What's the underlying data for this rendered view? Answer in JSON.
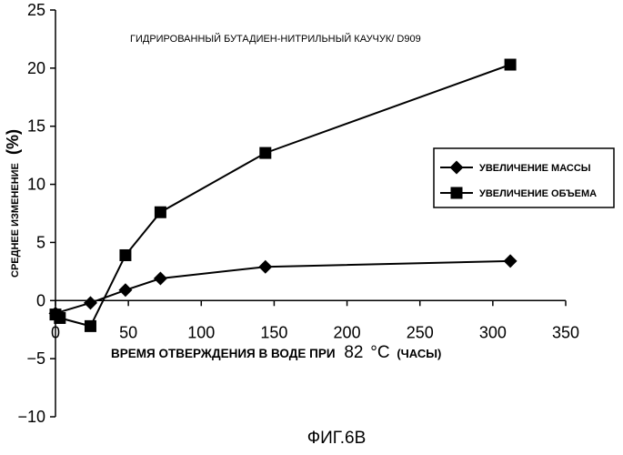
{
  "figure_caption": "ФИГ.6В",
  "chart_data": {
    "type": "line",
    "title": "ГИДРИРОВАННЫЙ БУТАДИЕН-НИТРИЛЬНЫЙ КАУЧУК/ D909",
    "xlabel_prefix": "ВРЕМЯ ОТВЕРЖДЕНИЯ В ВОДЕ ПРИ",
    "xlabel_temp": "82",
    "xlabel_unit": "°C",
    "xlabel_suffix": "(ЧАСЫ)",
    "ylabel_text": "СРЕДНЕЕ  ИЗМЕНЕНИЕ",
    "ylabel_unit": "(%)",
    "xlim": [
      0,
      350
    ],
    "ylim": [
      -10,
      25
    ],
    "x_ticks": [
      0,
      50,
      100,
      150,
      200,
      250,
      300,
      350
    ],
    "y_ticks": [
      -10,
      -5,
      0,
      5,
      10,
      15,
      20,
      25
    ],
    "x_tick_labels": [
      "0",
      "50",
      "100",
      "150",
      "200",
      "250",
      "300",
      "350"
    ],
    "y_tick_labels": [
      "−10",
      "−5",
      "0",
      "5",
      "10",
      "15",
      "20",
      "25"
    ],
    "legend_position": "right",
    "grid": false,
    "series": [
      {
        "name": "УВЕЛИЧЕНИЕ МАССЫ",
        "marker": "diamond",
        "color": "#000000",
        "x": [
          0,
          24,
          48,
          72,
          144,
          312
        ],
        "y": [
          -1.1,
          -0.2,
          0.9,
          1.9,
          2.9,
          3.4
        ]
      },
      {
        "name": "УВЕЛИЧЕНИЕ ОБЪЕМА",
        "marker": "square",
        "color": "#000000",
        "x": [
          0,
          3,
          24,
          48,
          72,
          144,
          312
        ],
        "y": [
          -1.2,
          -1.5,
          -2.2,
          3.9,
          7.6,
          12.7,
          20.3
        ]
      }
    ]
  }
}
